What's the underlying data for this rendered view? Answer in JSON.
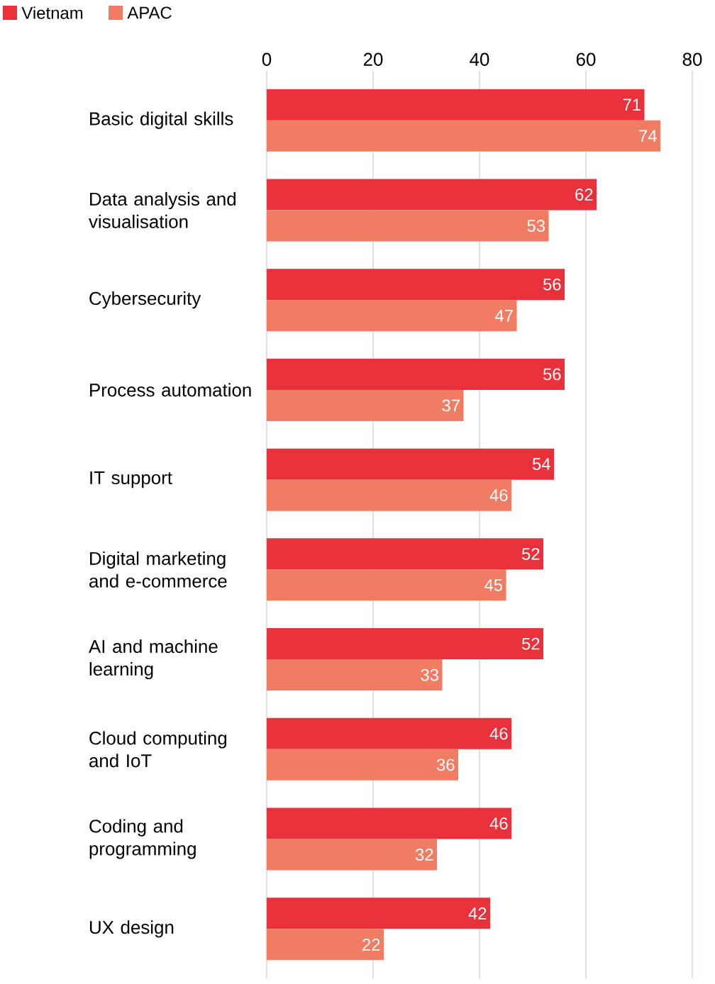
{
  "chart_data": {
    "type": "bar",
    "orientation": "horizontal",
    "categories": [
      "Basic digital skills",
      "Data analysis and visualisation",
      "Cybersecurity",
      "Process automation",
      "IT support",
      "Digital marketing and e-commerce",
      "AI and machine learning",
      "Cloud computing and IoT",
      "Coding and programming",
      "UX design"
    ],
    "series": [
      {
        "name": "Vietnam",
        "color": "#e8313a",
        "values": [
          71,
          62,
          56,
          56,
          54,
          52,
          52,
          46,
          46,
          42
        ]
      },
      {
        "name": "APAC",
        "color": "#f07c64",
        "values": [
          74,
          53,
          47,
          37,
          46,
          45,
          33,
          36,
          32,
          22
        ]
      }
    ],
    "xlim": [
      0,
      80
    ],
    "xticks": [
      0,
      20,
      40,
      60,
      80
    ],
    "grid": "x",
    "legend": "top left",
    "data_labels": true
  }
}
